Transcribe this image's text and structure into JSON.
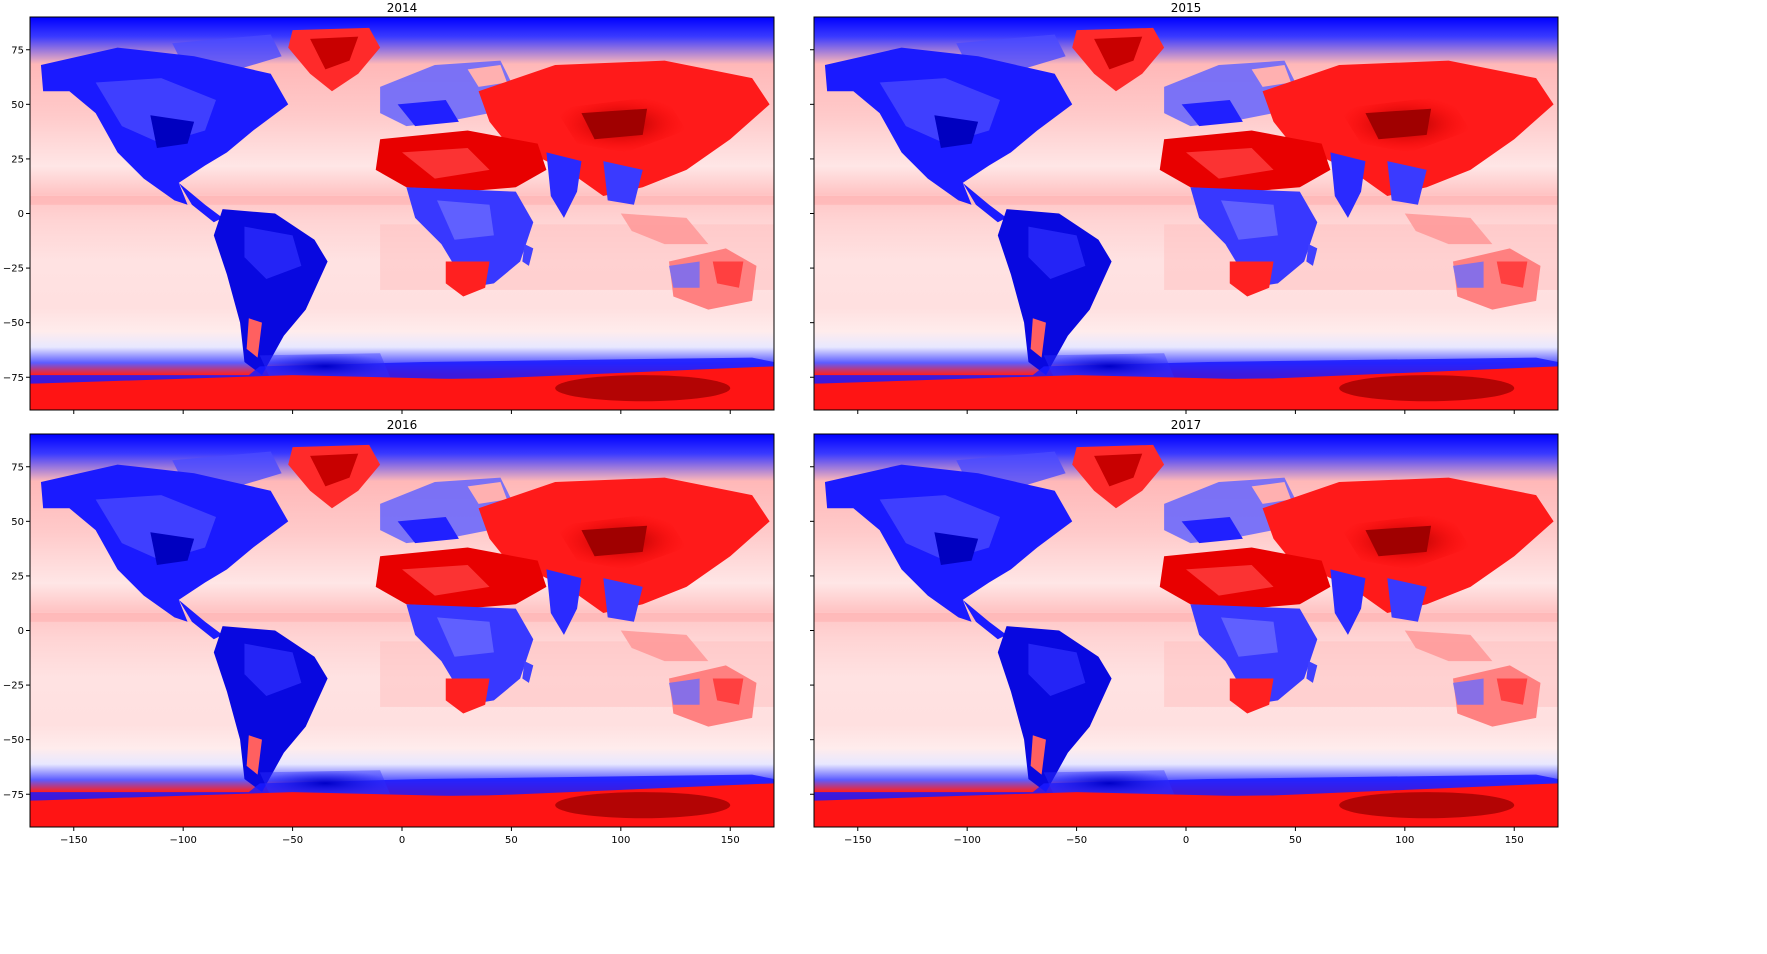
{
  "chart_data": [
    {
      "type": "heatmap",
      "title": "2014",
      "xlabel": "",
      "ylabel": "",
      "xlim": [
        -170,
        170
      ],
      "ylim": [
        -90,
        90
      ],
      "xticks": [
        -150,
        -100,
        -50,
        0,
        50,
        100,
        150
      ],
      "yticks": [
        75,
        50,
        25,
        0,
        -25,
        -50,
        -75
      ],
      "show_xtick_labels": false,
      "show_ytick_labels": true,
      "colormap": "seismic",
      "colors": {
        "negative": "#0000ff",
        "mid": "#ffffff",
        "positive": "#ff0000",
        "dark_positive": "#800000"
      }
    },
    {
      "type": "heatmap",
      "title": "2015",
      "xlabel": "",
      "ylabel": "",
      "xlim": [
        -170,
        170
      ],
      "ylim": [
        -90,
        90
      ],
      "xticks": [
        -150,
        -100,
        -50,
        0,
        50,
        100,
        150
      ],
      "yticks": [
        75,
        50,
        25,
        0,
        -25,
        -50,
        -75
      ],
      "show_xtick_labels": false,
      "show_ytick_labels": false,
      "colormap": "seismic",
      "colors": {
        "negative": "#0000ff",
        "mid": "#ffffff",
        "positive": "#ff0000",
        "dark_positive": "#800000"
      }
    },
    {
      "type": "heatmap",
      "title": "2016",
      "xlabel": "",
      "ylabel": "",
      "xlim": [
        -170,
        170
      ],
      "ylim": [
        -90,
        90
      ],
      "xticks": [
        -150,
        -100,
        -50,
        0,
        50,
        100,
        150
      ],
      "yticks": [
        75,
        50,
        25,
        0,
        -25,
        -50,
        -75
      ],
      "show_xtick_labels": true,
      "show_ytick_labels": true,
      "colormap": "seismic",
      "colors": {
        "negative": "#0000ff",
        "mid": "#ffffff",
        "positive": "#ff0000",
        "dark_positive": "#800000"
      }
    },
    {
      "type": "heatmap",
      "title": "2017",
      "xlabel": "",
      "ylabel": "",
      "xlim": [
        -170,
        170
      ],
      "ylim": [
        -90,
        90
      ],
      "xticks": [
        -150,
        -100,
        -50,
        0,
        50,
        100,
        150
      ],
      "yticks": [
        75,
        50,
        25,
        0,
        -25,
        -50,
        -75
      ],
      "show_xtick_labels": true,
      "show_ytick_labels": false,
      "colormap": "seismic",
      "colors": {
        "negative": "#0000ff",
        "mid": "#ffffff",
        "positive": "#ff0000",
        "dark_positive": "#800000"
      }
    }
  ]
}
